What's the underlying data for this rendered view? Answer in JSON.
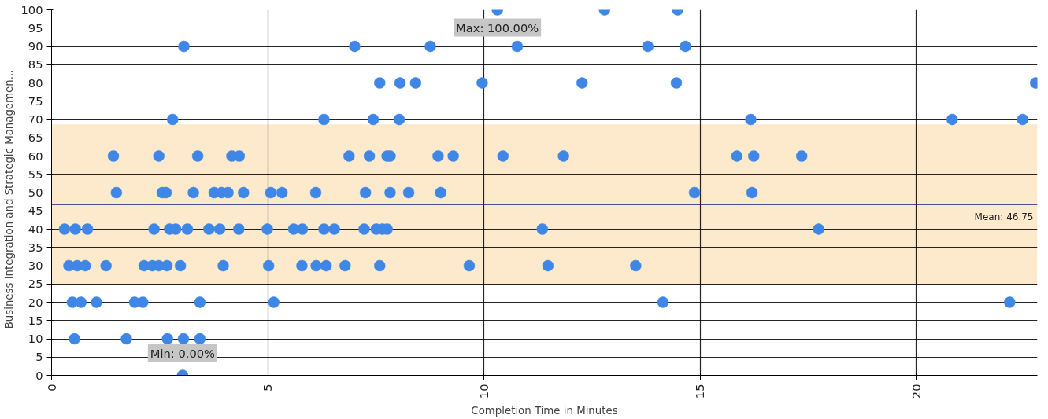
{
  "chart_data": {
    "type": "scatter",
    "xlabel": "Completion Time in Minutes",
    "ylabel": "Business  Integration  and  Strategic  Managemen...",
    "x": [
      10.31,
      12.79,
      14.48,
      3.06,
      7.01,
      8.76,
      10.77,
      13.79,
      14.66,
      7.59,
      8.06,
      8.42,
      9.96,
      12.27,
      14.45,
      22.76,
      2.8,
      6.3,
      7.44,
      8.04,
      16.17,
      20.83,
      22.46,
      1.43,
      2.48,
      3.38,
      4.17,
      4.34,
      6.88,
      7.35,
      7.76,
      7.83,
      8.94,
      9.29,
      10.44,
      11.84,
      15.85,
      16.24,
      17.35,
      1.5,
      2.56,
      2.65,
      3.28,
      3.76,
      3.93,
      4.08,
      4.44,
      5.07,
      5.33,
      6.11,
      7.26,
      7.83,
      8.26,
      9.0,
      14.87,
      16.2,
      0.3,
      0.55,
      0.83,
      2.37,
      2.73,
      2.87,
      3.14,
      3.64,
      3.89,
      4.33,
      4.99,
      5.6,
      5.8,
      6.3,
      6.54,
      7.23,
      7.51,
      7.65,
      7.76,
      11.35,
      17.74,
      0.4,
      0.59,
      0.78,
      1.26,
      2.14,
      2.33,
      2.48,
      2.67,
      2.98,
      3.97,
      5.02,
      5.79,
      6.12,
      6.35,
      6.79,
      7.59,
      9.66,
      11.48,
      13.51,
      0.48,
      0.68,
      1.04,
      1.92,
      2.11,
      3.43,
      5.14,
      14.14,
      22.16,
      0.53,
      1.73,
      2.68,
      3.05,
      3.43,
      3.03
    ],
    "values": [
      100,
      100,
      100,
      90,
      90,
      90,
      90,
      90,
      90,
      80,
      80,
      80,
      80,
      80,
      80,
      80,
      70,
      70,
      70,
      70,
      70,
      70,
      70,
      60,
      60,
      60,
      60,
      60,
      60,
      60,
      60,
      60,
      60,
      60,
      60,
      60,
      60,
      60,
      60,
      50,
      50,
      50,
      50,
      50,
      50,
      50,
      50,
      50,
      50,
      50,
      50,
      50,
      50,
      50,
      50,
      50,
      40,
      40,
      40,
      40,
      40,
      40,
      40,
      40,
      40,
      40,
      40,
      40,
      40,
      40,
      40,
      40,
      40,
      40,
      40,
      40,
      40,
      30,
      30,
      30,
      30,
      30,
      30,
      30,
      30,
      30,
      30,
      30,
      30,
      30,
      30,
      30,
      30,
      30,
      30,
      30,
      20,
      20,
      20,
      20,
      20,
      20,
      20,
      20,
      20,
      10,
      10,
      10,
      10,
      10,
      0
    ],
    "color": "#3f87e6",
    "marker": "circle",
    "xlim": [
      0,
      22.8
    ],
    "xticks": [
      0,
      5,
      10,
      15,
      20
    ],
    "ylim": [
      0,
      100
    ],
    "yticks": [
      0,
      5,
      10,
      15,
      20,
      25,
      30,
      35,
      40,
      45,
      50,
      55,
      60,
      65,
      70,
      75,
      80,
      85,
      90,
      95,
      100
    ],
    "grid": true,
    "ref_lines": [
      {
        "axis": "y",
        "value": 46.75,
        "label": "Mean: 46.75",
        "color": "#1a1a8c"
      }
    ],
    "bands": [
      {
        "axis": "y",
        "from": 24.85,
        "to": 68.65,
        "color": "#fde9cc"
      }
    ],
    "annotations": [
      {
        "text": "Max: 100.00%",
        "x": 10.31,
        "y": 100
      },
      {
        "text": "Min: 0.00%",
        "x": 3.03,
        "y": 0
      }
    ]
  }
}
